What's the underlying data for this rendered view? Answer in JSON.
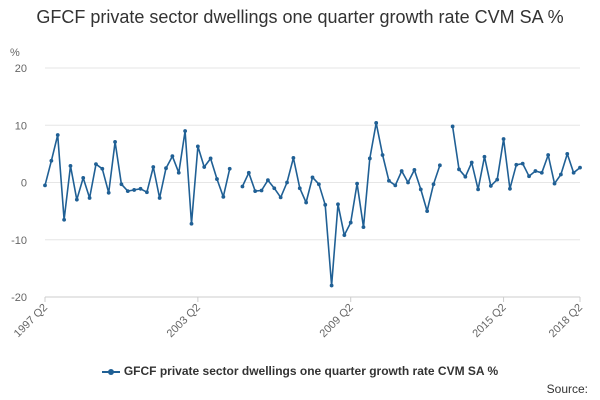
{
  "chart_data": {
    "type": "line",
    "title": "GFCF private sector dwellings one quarter growth rate CVM SA %",
    "ylabel": "%",
    "ylim": [
      -20,
      20
    ],
    "yticks": [
      "20",
      "10",
      "0",
      "-10",
      "-20"
    ],
    "ytick_values": [
      20,
      10,
      0,
      -10,
      -20
    ],
    "x_ticks": [
      "1997 Q2",
      "2003 Q2",
      "2009 Q2",
      "2015 Q2",
      "2018 Q2"
    ],
    "x_tick_indices": [
      0,
      24,
      48,
      72,
      84
    ],
    "grid": true,
    "legend_position": "bottom",
    "source_label": "Source:",
    "series": [
      {
        "name": "GFCF private sector dwellings one quarter growth rate CVM SA %",
        "color": "#206095",
        "values": [
          -0.5,
          3.8,
          8.3,
          -6.5,
          2.9,
          -3.0,
          0.8,
          -2.7,
          3.2,
          2.4,
          -1.8,
          7.1,
          -0.3,
          -1.5,
          -1.3,
          -1.1,
          -1.7,
          2.7,
          -2.7,
          2.5,
          4.6,
          1.7,
          9.0,
          -7.2,
          6.3,
          2.7,
          4.2,
          0.6,
          -2.5,
          2.4,
          null,
          -0.7,
          1.7,
          -1.5,
          -1.4,
          0.4,
          -1.0,
          -2.6,
          0.0,
          4.3,
          -1.0,
          -3.5,
          0.9,
          -0.3,
          -3.9,
          -18.0,
          -3.8,
          -9.2,
          -7.0,
          -0.2,
          -7.8,
          4.2,
          10.4,
          4.8,
          0.3,
          -0.5,
          2.0,
          0.0,
          2.2,
          -1.2,
          -5.0,
          -0.3,
          3.0,
          null,
          9.8,
          2.3,
          1.0,
          3.5,
          -1.2,
          4.5,
          -0.6,
          0.5,
          7.6,
          -1.1,
          3.1,
          3.3,
          1.1,
          2.0,
          1.7,
          4.8,
          -0.2,
          1.4,
          5.0,
          1.7,
          2.6
        ]
      }
    ]
  }
}
